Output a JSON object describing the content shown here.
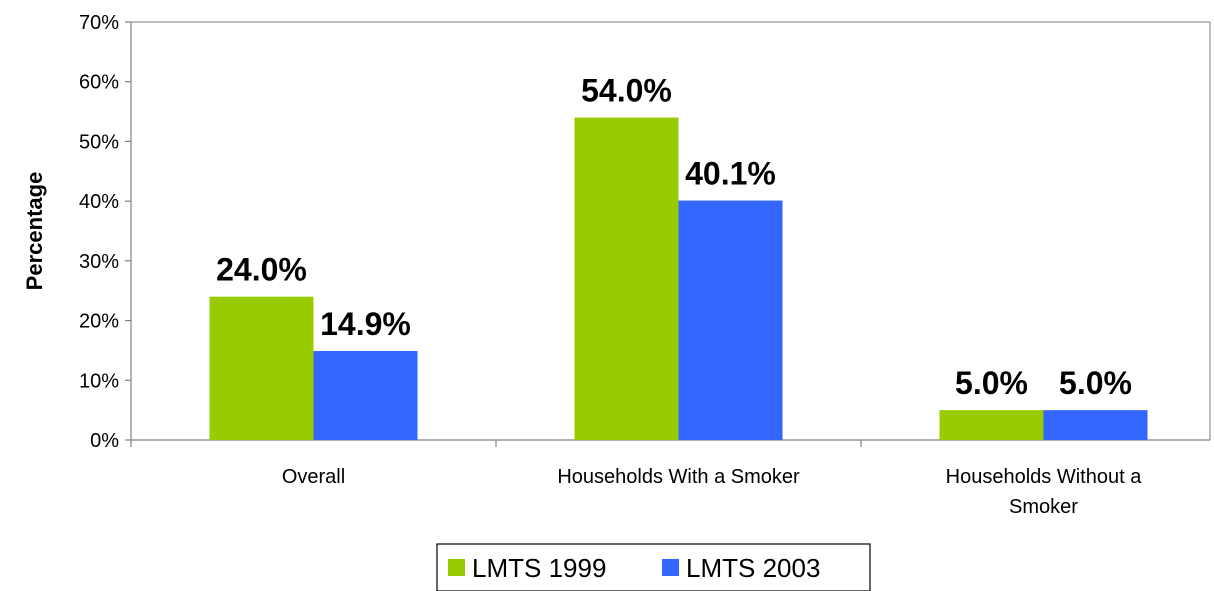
{
  "chart_data": {
    "type": "bar",
    "categories": [
      [
        "Overall"
      ],
      [
        "Households With a Smoker"
      ],
      [
        "Households Without a",
        "Smoker"
      ]
    ],
    "series": [
      {
        "name": "LMTS 1999",
        "values": [
          24.0,
          54.0,
          5.0
        ],
        "labels": [
          "24.0%",
          "54.0%",
          "5.0%"
        ],
        "color": "#99cc00"
      },
      {
        "name": "LMTS 2003",
        "values": [
          14.9,
          40.1,
          5.0
        ],
        "labels": [
          "14.9%",
          "40.1%",
          "5.0%"
        ],
        "color": "#3366ff"
      }
    ],
    "ylabel": "Percentage",
    "xlabel": "",
    "ylim": [
      0,
      70
    ],
    "yticks": [
      0,
      10,
      20,
      30,
      40,
      50,
      60,
      70
    ],
    "ytick_labels": [
      "0%",
      "10%",
      "20%",
      "30%",
      "40%",
      "50%",
      "60%",
      "70%"
    ],
    "grid": false,
    "legend_position": "bottom"
  }
}
